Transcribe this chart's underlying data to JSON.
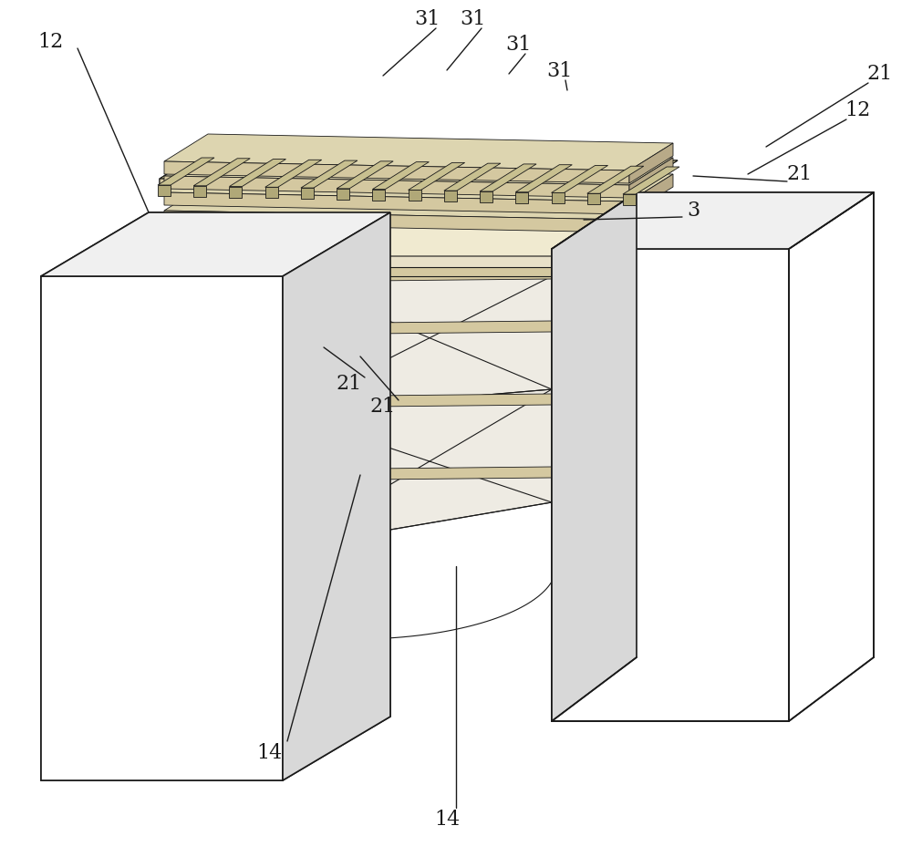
{
  "bg_color": "#ffffff",
  "lc": "#1a1a1a",
  "white": "#ffffff",
  "light_grey": "#f0f0f0",
  "mid_grey": "#d8d8d8",
  "tan_light": "#e8e0c8",
  "tan_mid": "#d4c8a0",
  "tan_dark": "#b8aa88",
  "figsize": [
    10.0,
    9.51
  ],
  "label_fs": 16,
  "leader_lw": 1.0,
  "struct_lw": 1.2,
  "detail_lw": 0.8,
  "thin_lw": 0.6
}
